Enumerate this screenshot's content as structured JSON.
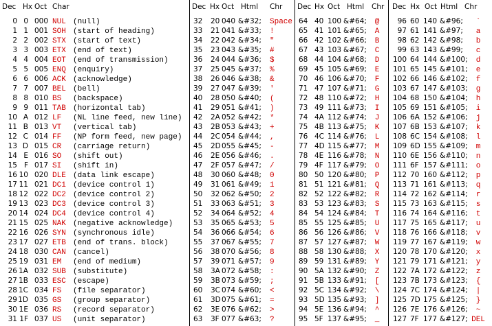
{
  "table": {
    "headers": [
      [
        "Dec",
        "Hx",
        "Oct",
        "Char"
      ],
      [
        "Dec",
        "Hx",
        "Oct",
        "Html",
        "Chr"
      ],
      [
        "Dec",
        "Hx",
        "Oct",
        "Html",
        "Chr"
      ],
      [
        "Dec",
        "Hx",
        "Oct",
        "Html",
        "Chr"
      ]
    ],
    "blocks": [
      [
        [
          0,
          "0",
          "000",
          "NUL",
          "(null)"
        ],
        [
          1,
          "1",
          "001",
          "SOH",
          "(start of heading)"
        ],
        [
          2,
          "2",
          "002",
          "STX",
          "(start of text)"
        ],
        [
          3,
          "3",
          "003",
          "ETX",
          "(end of text)"
        ],
        [
          4,
          "4",
          "004",
          "EOT",
          "(end of transmission)"
        ],
        [
          5,
          "5",
          "005",
          "ENQ",
          "(enquiry)"
        ],
        [
          6,
          "6",
          "006",
          "ACK",
          "(acknowledge)"
        ],
        [
          7,
          "7",
          "007",
          "BEL",
          "(bell)"
        ],
        [
          8,
          "8",
          "010",
          "BS",
          "(backspace)"
        ],
        [
          9,
          "9",
          "011",
          "TAB",
          "(horizontal tab)"
        ],
        [
          10,
          "A",
          "012",
          "LF",
          "(NL line feed, new line)"
        ],
        [
          11,
          "B",
          "013",
          "VT",
          "(vertical tab)"
        ],
        [
          12,
          "C",
          "014",
          "FF",
          "(NP form feed, new page)"
        ],
        [
          13,
          "D",
          "015",
          "CR",
          "(carriage return)"
        ],
        [
          14,
          "E",
          "016",
          "SO",
          "(shift out)"
        ],
        [
          15,
          "F",
          "017",
          "SI",
          "(shift in)"
        ],
        [
          16,
          "10",
          "020",
          "DLE",
          "(data link escape)"
        ],
        [
          17,
          "11",
          "021",
          "DC1",
          "(device control 1)"
        ],
        [
          18,
          "12",
          "022",
          "DC2",
          "(device control 2)"
        ],
        [
          19,
          "13",
          "023",
          "DC3",
          "(device control 3)"
        ],
        [
          20,
          "14",
          "024",
          "DC4",
          "(device control 4)"
        ],
        [
          21,
          "15",
          "025",
          "NAK",
          "(negative acknowledge)"
        ],
        [
          22,
          "16",
          "026",
          "SYN",
          "(synchronous idle)"
        ],
        [
          23,
          "17",
          "027",
          "ETB",
          "(end of trans. block)"
        ],
        [
          24,
          "18",
          "030",
          "CAN",
          "(cancel)"
        ],
        [
          25,
          "19",
          "031",
          "EM",
          "(end of medium)"
        ],
        [
          26,
          "1A",
          "032",
          "SUB",
          "(substitute)"
        ],
        [
          27,
          "1B",
          "033",
          "ESC",
          "(escape)"
        ],
        [
          28,
          "1C",
          "034",
          "FS",
          "(file separator)"
        ],
        [
          29,
          "1D",
          "035",
          "GS",
          "(group separator)"
        ],
        [
          30,
          "1E",
          "036",
          "RS",
          "(record separator)"
        ],
        [
          31,
          "1F",
          "037",
          "US",
          "(unit separator)"
        ]
      ],
      [
        [
          32,
          "20",
          "040",
          "&#32;",
          "Space"
        ],
        [
          33,
          "21",
          "041",
          "&#33;",
          "!"
        ],
        [
          34,
          "22",
          "042",
          "&#34;",
          "\""
        ],
        [
          35,
          "23",
          "043",
          "&#35;",
          "#"
        ],
        [
          36,
          "24",
          "044",
          "&#36;",
          "$"
        ],
        [
          37,
          "25",
          "045",
          "&#37;",
          "%"
        ],
        [
          38,
          "26",
          "046",
          "&#38;",
          "&"
        ],
        [
          39,
          "27",
          "047",
          "&#39;",
          "'"
        ],
        [
          40,
          "28",
          "050",
          "&#40;",
          "("
        ],
        [
          41,
          "29",
          "051",
          "&#41;",
          ")"
        ],
        [
          42,
          "2A",
          "052",
          "&#42;",
          "*"
        ],
        [
          43,
          "2B",
          "053",
          "&#43;",
          "+"
        ],
        [
          44,
          "2C",
          "054",
          "&#44;",
          ","
        ],
        [
          45,
          "2D",
          "055",
          "&#45;",
          "-"
        ],
        [
          46,
          "2E",
          "056",
          "&#46;",
          "."
        ],
        [
          47,
          "2F",
          "057",
          "&#47;",
          "/"
        ],
        [
          48,
          "30",
          "060",
          "&#48;",
          "0"
        ],
        [
          49,
          "31",
          "061",
          "&#49;",
          "1"
        ],
        [
          50,
          "32",
          "062",
          "&#50;",
          "2"
        ],
        [
          51,
          "33",
          "063",
          "&#51;",
          "3"
        ],
        [
          52,
          "34",
          "064",
          "&#52;",
          "4"
        ],
        [
          53,
          "35",
          "065",
          "&#53;",
          "5"
        ],
        [
          54,
          "36",
          "066",
          "&#54;",
          "6"
        ],
        [
          55,
          "37",
          "067",
          "&#55;",
          "7"
        ],
        [
          56,
          "38",
          "070",
          "&#56;",
          "8"
        ],
        [
          57,
          "39",
          "071",
          "&#57;",
          "9"
        ],
        [
          58,
          "3A",
          "072",
          "&#58;",
          ":"
        ],
        [
          59,
          "3B",
          "073",
          "&#59;",
          ";"
        ],
        [
          60,
          "3C",
          "074",
          "&#60;",
          "<"
        ],
        [
          61,
          "3D",
          "075",
          "&#61;",
          "="
        ],
        [
          62,
          "3E",
          "076",
          "&#62;",
          ">"
        ],
        [
          63,
          "3F",
          "077",
          "&#63;",
          "?"
        ]
      ],
      [
        [
          64,
          "40",
          "100",
          "&#64;",
          "@"
        ],
        [
          65,
          "41",
          "101",
          "&#65;",
          "A"
        ],
        [
          66,
          "42",
          "102",
          "&#66;",
          "B"
        ],
        [
          67,
          "43",
          "103",
          "&#67;",
          "C"
        ],
        [
          68,
          "44",
          "104",
          "&#68;",
          "D"
        ],
        [
          69,
          "45",
          "105",
          "&#69;",
          "E"
        ],
        [
          70,
          "46",
          "106",
          "&#70;",
          "F"
        ],
        [
          71,
          "47",
          "107",
          "&#71;",
          "G"
        ],
        [
          72,
          "48",
          "110",
          "&#72;",
          "H"
        ],
        [
          73,
          "49",
          "111",
          "&#73;",
          "I"
        ],
        [
          74,
          "4A",
          "112",
          "&#74;",
          "J"
        ],
        [
          75,
          "4B",
          "113",
          "&#75;",
          "K"
        ],
        [
          76,
          "4C",
          "114",
          "&#76;",
          "L"
        ],
        [
          77,
          "4D",
          "115",
          "&#77;",
          "M"
        ],
        [
          78,
          "4E",
          "116",
          "&#78;",
          "N"
        ],
        [
          79,
          "4F",
          "117",
          "&#79;",
          "O"
        ],
        [
          80,
          "50",
          "120",
          "&#80;",
          "P"
        ],
        [
          81,
          "51",
          "121",
          "&#81;",
          "Q"
        ],
        [
          82,
          "52",
          "122",
          "&#82;",
          "R"
        ],
        [
          83,
          "53",
          "123",
          "&#83;",
          "S"
        ],
        [
          84,
          "54",
          "124",
          "&#84;",
          "T"
        ],
        [
          85,
          "55",
          "125",
          "&#85;",
          "U"
        ],
        [
          86,
          "56",
          "126",
          "&#86;",
          "V"
        ],
        [
          87,
          "57",
          "127",
          "&#87;",
          "W"
        ],
        [
          88,
          "58",
          "130",
          "&#88;",
          "X"
        ],
        [
          89,
          "59",
          "131",
          "&#89;",
          "Y"
        ],
        [
          90,
          "5A",
          "132",
          "&#90;",
          "Z"
        ],
        [
          91,
          "5B",
          "133",
          "&#91;",
          "["
        ],
        [
          92,
          "5C",
          "134",
          "&#92;",
          "\\"
        ],
        [
          93,
          "5D",
          "135",
          "&#93;",
          "]"
        ],
        [
          94,
          "5E",
          "136",
          "&#94;",
          "^"
        ],
        [
          95,
          "5F",
          "137",
          "&#95;",
          "_"
        ]
      ],
      [
        [
          96,
          "60",
          "140",
          "&#96;",
          "`"
        ],
        [
          97,
          "61",
          "141",
          "&#97;",
          "a"
        ],
        [
          98,
          "62",
          "142",
          "&#98;",
          "b"
        ],
        [
          99,
          "63",
          "143",
          "&#99;",
          "c"
        ],
        [
          100,
          "64",
          "144",
          "&#100;",
          "d"
        ],
        [
          101,
          "65",
          "145",
          "&#101;",
          "e"
        ],
        [
          102,
          "66",
          "146",
          "&#102;",
          "f"
        ],
        [
          103,
          "67",
          "147",
          "&#103;",
          "g"
        ],
        [
          104,
          "68",
          "150",
          "&#104;",
          "h"
        ],
        [
          105,
          "69",
          "151",
          "&#105;",
          "i"
        ],
        [
          106,
          "6A",
          "152",
          "&#106;",
          "j"
        ],
        [
          107,
          "6B",
          "153",
          "&#107;",
          "k"
        ],
        [
          108,
          "6C",
          "154",
          "&#108;",
          "l"
        ],
        [
          109,
          "6D",
          "155",
          "&#109;",
          "m"
        ],
        [
          110,
          "6E",
          "156",
          "&#110;",
          "n"
        ],
        [
          111,
          "6F",
          "157",
          "&#111;",
          "o"
        ],
        [
          112,
          "70",
          "160",
          "&#112;",
          "p"
        ],
        [
          113,
          "71",
          "161",
          "&#113;",
          "q"
        ],
        [
          114,
          "72",
          "162",
          "&#114;",
          "r"
        ],
        [
          115,
          "73",
          "163",
          "&#115;",
          "s"
        ],
        [
          116,
          "74",
          "164",
          "&#116;",
          "t"
        ],
        [
          117,
          "75",
          "165",
          "&#117;",
          "u"
        ],
        [
          118,
          "76",
          "166",
          "&#118;",
          "v"
        ],
        [
          119,
          "77",
          "167",
          "&#119;",
          "w"
        ],
        [
          120,
          "78",
          "170",
          "&#120;",
          "x"
        ],
        [
          121,
          "79",
          "171",
          "&#121;",
          "y"
        ],
        [
          122,
          "7A",
          "172",
          "&#122;",
          "z"
        ],
        [
          123,
          "7B",
          "173",
          "&#123;",
          "{"
        ],
        [
          124,
          "7C",
          "174",
          "&#124;",
          "|"
        ],
        [
          125,
          "7D",
          "175",
          "&#125;",
          "}"
        ],
        [
          126,
          "7E",
          "176",
          "&#126;",
          "~"
        ],
        [
          127,
          "7F",
          "177",
          "&#127;",
          "DEL"
        ]
      ]
    ]
  }
}
